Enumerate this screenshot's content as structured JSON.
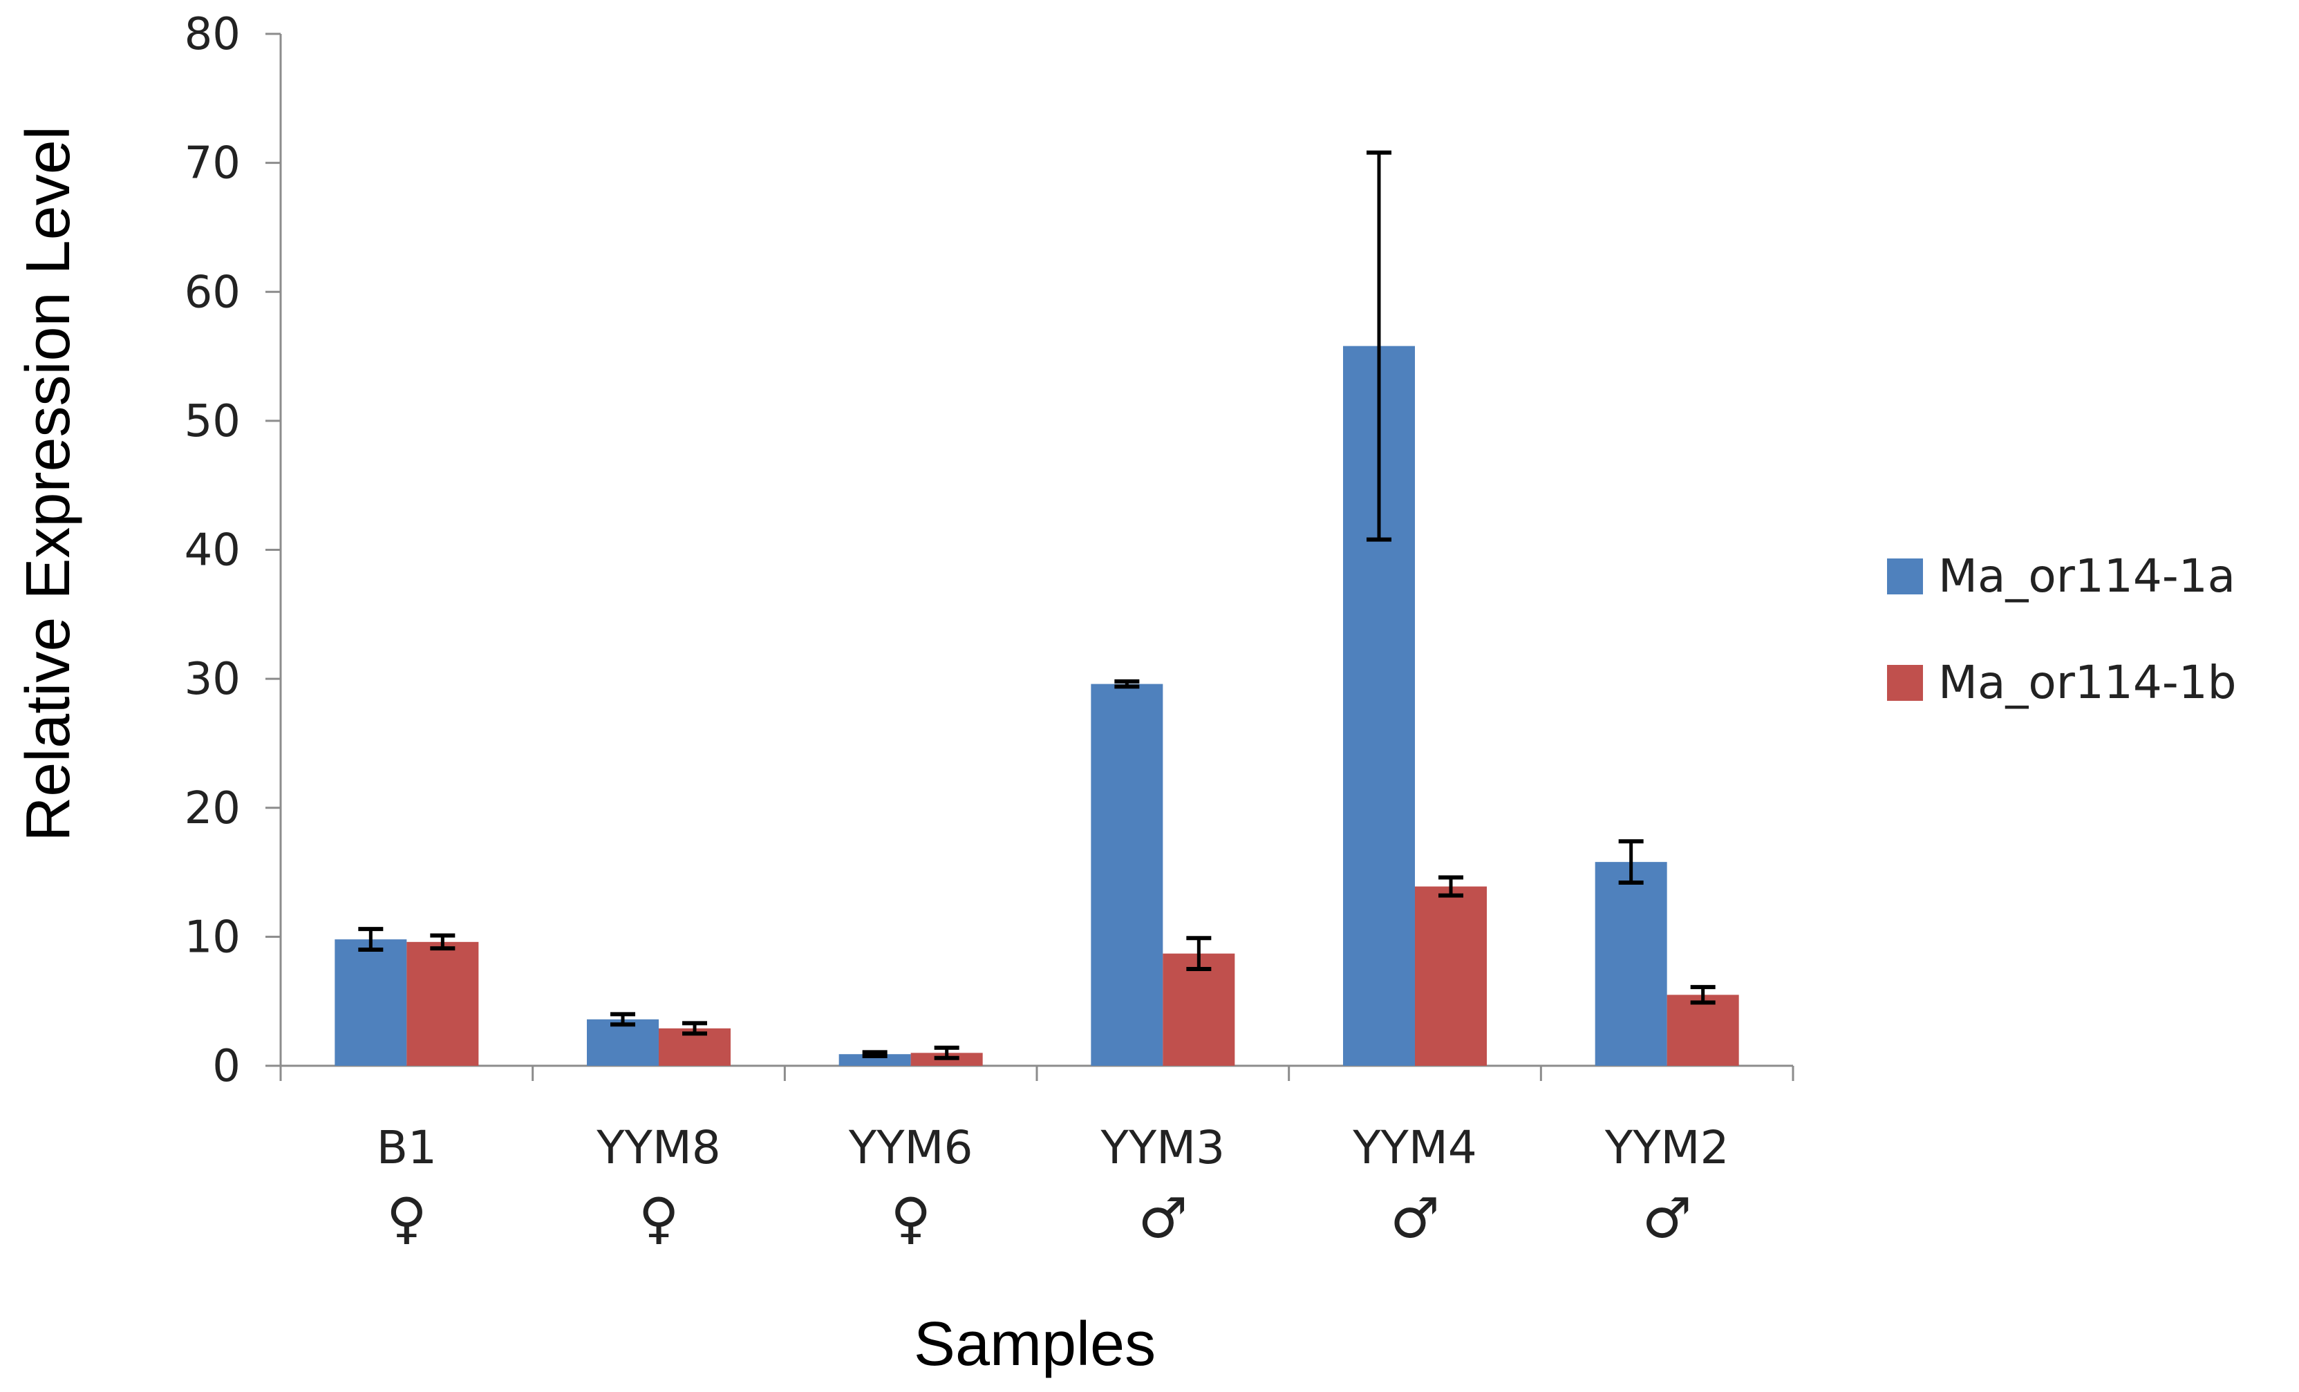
{
  "chart_data": {
    "type": "bar",
    "title": "",
    "xlabel": "Samples",
    "ylabel": "Relative Expression Level",
    "ylim": [
      0,
      80
    ],
    "yticks": [
      0,
      10,
      20,
      30,
      40,
      50,
      60,
      70,
      80
    ],
    "grid": false,
    "legend_position": "right",
    "categories": [
      "B1",
      "YYM8",
      "YYM6",
      "YYM3",
      "YYM4",
      "YYM2"
    ],
    "sex": [
      "♀",
      "♀",
      "♀",
      "♂",
      "♂",
      "♂"
    ],
    "series": [
      {
        "name": "Ma_or114-1a",
        "color": "#4F81BD",
        "values": [
          9.8,
          3.6,
          0.9,
          29.6,
          55.8,
          15.8
        ],
        "errors": [
          0.8,
          0.4,
          0.15,
          0.2,
          15.0,
          1.6
        ]
      },
      {
        "name": "Ma_or114-1b",
        "color": "#C0504D",
        "values": [
          9.6,
          2.9,
          1.0,
          8.7,
          13.9,
          5.5
        ],
        "errors": [
          0.5,
          0.4,
          0.4,
          1.2,
          0.7,
          0.6
        ]
      }
    ]
  }
}
